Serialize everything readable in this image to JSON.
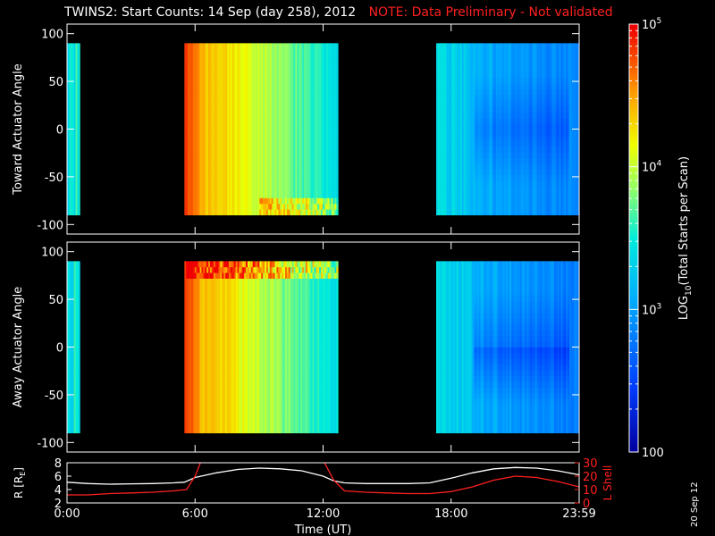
{
  "title": {
    "main": "TWINS2: Start Counts: 14 Sep (day 258), 2012",
    "note": "NOTE: Data Preliminary - Not validated"
  },
  "date_stamp": "20 Sep 12",
  "colors": {
    "background": "#000000",
    "axes": "#ffffff",
    "note": "#ff2020",
    "r_line": "#ffffff",
    "lshell_line": "#ff2020"
  },
  "chart_data": [
    {
      "type": "heatmap",
      "panel": "top",
      "ylabel": "Toward Actuator Angle",
      "ylim": [
        -110,
        110
      ],
      "yticks": [
        100,
        50,
        0,
        -50,
        -100
      ],
      "y_data_range": [
        -90,
        90
      ],
      "xlim_hours": [
        0,
        24
      ],
      "data_intervals_hours": [
        [
          0.0,
          0.6
        ],
        [
          5.5,
          12.7
        ],
        [
          17.3,
          24.0
        ]
      ],
      "tick_labels": [
        "100",
        "50",
        "0",
        "-50",
        "-100"
      ]
    },
    {
      "type": "heatmap",
      "panel": "middle",
      "ylabel": "Away Actuator Angle",
      "ylim": [
        -110,
        110
      ],
      "yticks": [
        100,
        50,
        0,
        -50,
        -100
      ],
      "y_data_range": [
        -90,
        90
      ],
      "xlim_hours": [
        0,
        24
      ],
      "data_intervals_hours": [
        [
          0.0,
          0.6
        ],
        [
          5.5,
          12.7
        ],
        [
          17.3,
          24.0
        ]
      ],
      "tick_labels": [
        "100",
        "50",
        "0",
        "-50",
        "-100"
      ]
    },
    {
      "type": "colorbar",
      "label_prefix": "LOG",
      "label_sub": "10",
      "label_suffix": "(Total Starts per Scan)",
      "scale": "log",
      "range": [
        100,
        100000
      ],
      "tick_labels": [
        {
          "base": "100",
          "exp": "",
          "value": 100
        },
        {
          "base": "10",
          "exp": "3",
          "value": 1000
        },
        {
          "base": "10",
          "exp": "4",
          "value": 10000
        },
        {
          "base": "10",
          "exp": "5",
          "value": 100000
        }
      ]
    },
    {
      "type": "line",
      "panel": "bottom",
      "ylabel_left": "R [R",
      "ylabel_left_sub": "E",
      "ylabel_left_end": "]",
      "ylabel_right": "L Shell",
      "xlabel": "Time (UT)",
      "ylim_left": [
        2,
        8
      ],
      "ylim_right": [
        0,
        30
      ],
      "left_tick_labels": [
        "8",
        "6",
        "4",
        "2"
      ],
      "right_tick_labels": [
        "30",
        "20",
        "10",
        "0"
      ],
      "x_tick_labels": [
        "0:00",
        "6:00",
        "12:00",
        "18:00",
        "23:59"
      ],
      "series": [
        {
          "name": "R",
          "axis": "left",
          "x": [
            0,
            1,
            2,
            3,
            4,
            5,
            5.5,
            6,
            7,
            8,
            9,
            10,
            11,
            12,
            12.5,
            13,
            14,
            15,
            16,
            17,
            18,
            19,
            20,
            21,
            22,
            23,
            24
          ],
          "y": [
            5.1,
            4.9,
            4.8,
            4.85,
            4.9,
            5.0,
            5.1,
            5.8,
            6.5,
            7.0,
            7.2,
            7.1,
            6.8,
            6.0,
            5.3,
            5.0,
            4.9,
            4.9,
            4.9,
            5.0,
            5.7,
            6.5,
            7.1,
            7.3,
            7.2,
            6.8,
            6.2
          ]
        },
        {
          "name": "L Shell",
          "axis": "right",
          "x": [
            0,
            1,
            2,
            3,
            4,
            5,
            5.6,
            6.0,
            6.3,
            12.0,
            12.5,
            13,
            14,
            15,
            16,
            17,
            18,
            19,
            20,
            21,
            22,
            23,
            24
          ],
          "y": [
            6,
            6,
            7,
            7.5,
            8,
            9,
            10,
            20,
            32,
            32,
            17,
            9,
            8,
            7.5,
            7,
            7,
            8.5,
            12,
            17,
            20,
            19,
            16,
            12
          ]
        }
      ]
    }
  ]
}
